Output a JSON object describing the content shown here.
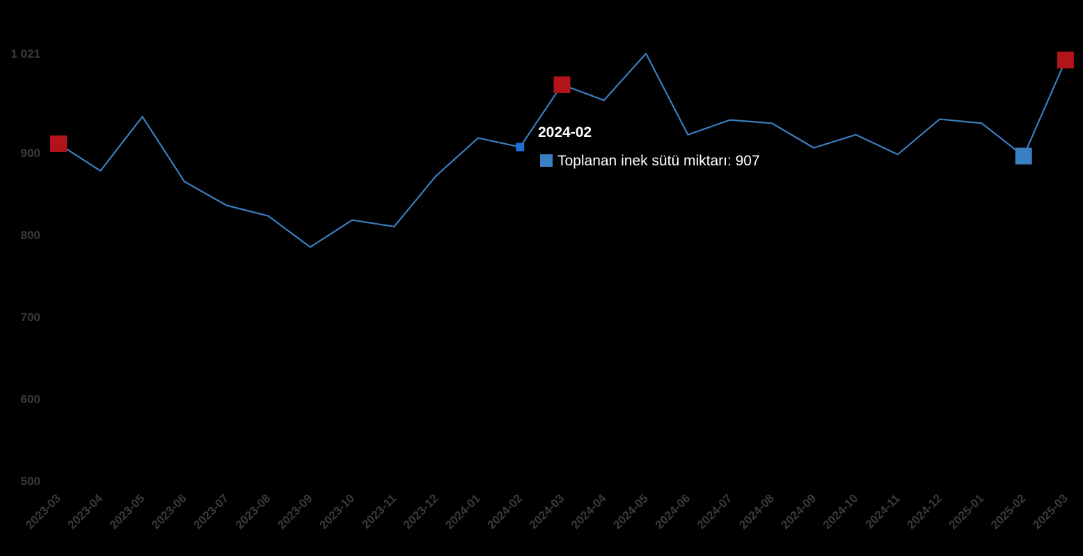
{
  "chart_data": {
    "type": "line",
    "categories": [
      "2023-03",
      "2023-04",
      "2023-05",
      "2023-06",
      "2023-07",
      "2023-08",
      "2023-09",
      "2023-10",
      "2023-11",
      "2023-12",
      "2024-01",
      "2024-02",
      "2024-03",
      "2024-04",
      "2024-05",
      "2024-06",
      "2024-07",
      "2024-08",
      "2024-09",
      "2024-10",
      "2024-11",
      "2024-12",
      "2025-01",
      "2025-02",
      "2025-03"
    ],
    "series": [
      {
        "name": "Toplanan inek sütü miktarı",
        "values": [
          911,
          878,
          944,
          865,
          836,
          823,
          785,
          818,
          810,
          872,
          918,
          907,
          983,
          964,
          1021,
          922,
          940,
          936,
          906,
          922,
          898,
          941,
          936,
          896,
          1013
        ]
      }
    ],
    "y_ticks": [
      "1 021",
      "900",
      "800",
      "700",
      "600",
      "500"
    ],
    "y_tick_values": [
      1021,
      900,
      800,
      700,
      600,
      500
    ],
    "ylim": [
      500,
      1021
    ],
    "grid": false,
    "highlights": [
      {
        "category": "2023-03",
        "kind": "max-marker"
      },
      {
        "category": "2024-03",
        "kind": "max-marker"
      },
      {
        "category": "2025-03",
        "kind": "max-marker"
      },
      {
        "category": "2025-02",
        "kind": "min-marker"
      }
    ],
    "colors": {
      "line": "#3a7fc1",
      "marker_max": "#b3141c",
      "marker_min": "#3a7fc1",
      "hover_marker": "#1f6fd1",
      "axis_text": "#3a3a3a",
      "background": "#000000"
    }
  },
  "tooltip": {
    "title": "2024-02",
    "label": "Toplanan inek sütü miktarı: 907",
    "swatch_color": "#3a7fc1",
    "category": "2024-02"
  }
}
